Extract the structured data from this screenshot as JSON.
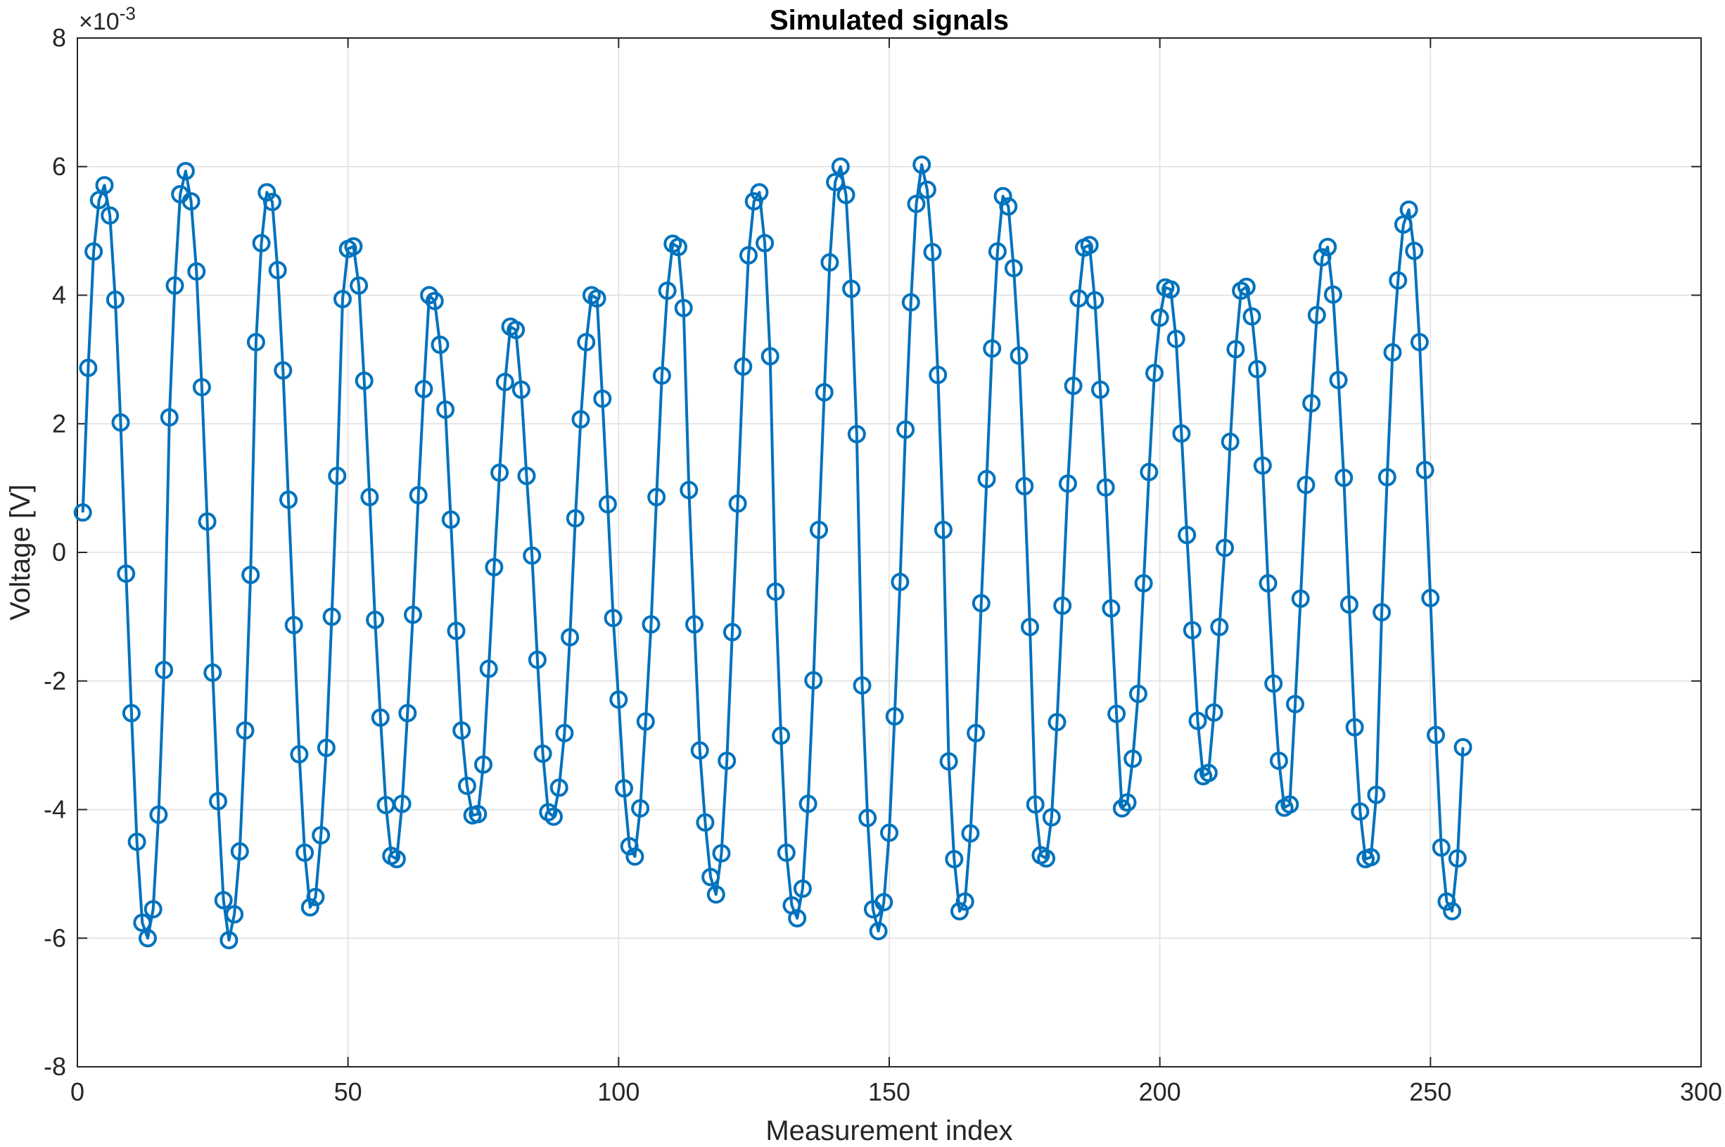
{
  "chart_data": {
    "type": "line",
    "title": "Simulated signals",
    "xlabel": "Measurement index",
    "ylabel": "Voltage [V]",
    "y_exponent_label": "×10",
    "y_exponent": "-3",
    "xlim": [
      0,
      300
    ],
    "ylim": [
      -8,
      8
    ],
    "x_ticks": [
      0,
      50,
      100,
      150,
      200,
      250,
      300
    ],
    "y_ticks": [
      -8,
      -6,
      -4,
      -2,
      0,
      2,
      4,
      6,
      8
    ],
    "grid": true,
    "marker": "circle",
    "series_color": "#0072BD",
    "series": [
      {
        "x": [
          1,
          2,
          3,
          4,
          5,
          6,
          7,
          8,
          9,
          10,
          11,
          12,
          13,
          14,
          15,
          16,
          17,
          18,
          19,
          20,
          21,
          22,
          23,
          24,
          25,
          26,
          27,
          28,
          29,
          30,
          31,
          32,
          33,
          34,
          35,
          36,
          37,
          38,
          39,
          40,
          41,
          42,
          43,
          44,
          45,
          46,
          47,
          48,
          49,
          50,
          51,
          52,
          53,
          54,
          55,
          56,
          57,
          58,
          59,
          60,
          61,
          62,
          63,
          64,
          65,
          66,
          67,
          68,
          69,
          70,
          71,
          72,
          73,
          74,
          75,
          76,
          77,
          78,
          79,
          80,
          81,
          82,
          83,
          84,
          85,
          86,
          87,
          88,
          89,
          90,
          91,
          92,
          93,
          94,
          95,
          96,
          97,
          98,
          99,
          100,
          101,
          102,
          103,
          104,
          105,
          106,
          107,
          108,
          109,
          110,
          111,
          112,
          113,
          114,
          115,
          116,
          117,
          118,
          119,
          120,
          121,
          122,
          123,
          124,
          125,
          126,
          127,
          128,
          129,
          130,
          131,
          132,
          133,
          134,
          135,
          136,
          137,
          138,
          139,
          140,
          141,
          142,
          143,
          144,
          145,
          146,
          147,
          148,
          149,
          150,
          151,
          152,
          153,
          154,
          155,
          156,
          157,
          158,
          159,
          160,
          161,
          162,
          163,
          164,
          165,
          166,
          167,
          168,
          169,
          170,
          171,
          172,
          173,
          174,
          175,
          176,
          177,
          178,
          179,
          180,
          181,
          182,
          183,
          184,
          185,
          186,
          187,
          188,
          189,
          190,
          191,
          192,
          193,
          194,
          195,
          196,
          197,
          198,
          199,
          200,
          201,
          202,
          203,
          204,
          205,
          206,
          207,
          208,
          209,
          210,
          211,
          212,
          213,
          214,
          215,
          216,
          217,
          218,
          219,
          220,
          221,
          222,
          223,
          224,
          225,
          226,
          227,
          228,
          229,
          230,
          231,
          232,
          233,
          234,
          235,
          236,
          237,
          238,
          239,
          240,
          241,
          242,
          243,
          244,
          245,
          246,
          247,
          248,
          249,
          250,
          251,
          252,
          253,
          254,
          255,
          256
        ],
        "y": [
          0.62,
          2.87,
          4.68,
          5.48,
          5.71,
          5.24,
          3.93,
          2.02,
          -0.33,
          -2.5,
          -4.5,
          -5.76,
          -6.0,
          -5.55,
          -4.08,
          -1.83,
          2.1,
          4.15,
          5.57,
          5.93,
          5.46,
          4.37,
          2.57,
          0.48,
          -1.87,
          -3.87,
          -5.41,
          -6.03,
          -5.63,
          -4.65,
          -2.77,
          -0.35,
          3.27,
          4.81,
          5.6,
          5.45,
          4.39,
          2.83,
          0.82,
          -1.13,
          -3.14,
          -4.67,
          -5.52,
          -5.36,
          -4.4,
          -3.04,
          -1.0,
          1.19,
          3.94,
          4.72,
          4.76,
          4.15,
          2.67,
          0.86,
          -1.05,
          -2.57,
          -3.93,
          -4.72,
          -4.77,
          -3.91,
          -2.5,
          -0.97,
          0.89,
          2.54,
          4.0,
          3.91,
          3.23,
          2.22,
          0.51,
          -1.22,
          -2.77,
          -3.63,
          -4.09,
          -4.07,
          -3.3,
          -1.81,
          -0.23,
          1.24,
          2.65,
          3.51,
          3.46,
          2.53,
          1.19,
          -0.05,
          -1.67,
          -3.13,
          -4.04,
          -4.11,
          -3.66,
          -2.81,
          -1.32,
          0.53,
          2.07,
          3.27,
          4.0,
          3.95,
          2.39,
          0.75,
          -1.02,
          -2.29,
          -3.67,
          -4.57,
          -4.73,
          -3.98,
          -2.63,
          -1.12,
          0.86,
          2.75,
          4.07,
          4.8,
          4.75,
          3.8,
          0.97,
          -1.12,
          -3.08,
          -4.2,
          -5.05,
          -5.32,
          -4.68,
          -3.24,
          -1.24,
          0.76,
          2.89,
          4.62,
          5.46,
          5.6,
          4.81,
          3.05,
          -0.61,
          -2.85,
          -4.67,
          -5.49,
          -5.69,
          -5.23,
          -3.91,
          -1.99,
          0.35,
          2.49,
          4.51,
          5.76,
          6.0,
          5.56,
          4.1,
          1.84,
          -2.07,
          -4.13,
          -5.55,
          -5.89,
          -5.44,
          -4.36,
          -2.55,
          -0.46,
          1.91,
          3.89,
          5.42,
          6.03,
          5.64,
          4.67,
          2.76,
          0.35,
          -3.25,
          -4.77,
          -5.58,
          -5.43,
          -4.37,
          -2.81,
          -0.79,
          1.14,
          3.17,
          4.68,
          5.54,
          5.38,
          4.42,
          3.06,
          1.03,
          -1.16,
          -3.92,
          -4.71,
          -4.76,
          -4.12,
          -2.64,
          -0.83,
          1.07,
          2.59,
          3.95,
          4.74,
          4.78,
          3.92,
          2.53,
          1.01,
          -0.87,
          -2.51,
          -3.98,
          -3.89,
          -3.21,
          -2.2,
          -0.48,
          1.25,
          2.79,
          3.65,
          4.12,
          4.09,
          3.32,
          1.85,
          0.27,
          -1.21,
          -2.62,
          -3.48,
          -3.43,
          -2.49,
          -1.16,
          0.07,
          1.72,
          3.16,
          4.07,
          4.13,
          3.67,
          2.85,
          1.35,
          -0.48,
          -2.04,
          -3.24,
          -3.97,
          -3.92,
          -2.36,
          -0.72,
          1.05,
          2.32,
          3.69,
          4.59,
          4.75,
          4.01,
          2.68,
          1.16,
          -0.81,
          -2.72,
          -4.03,
          -4.77,
          -4.74,
          -3.77,
          -0.93,
          1.17,
          3.11,
          4.23,
          5.1,
          5.33,
          4.69,
          3.27,
          1.28,
          -0.71,
          -2.84,
          -4.59,
          -5.43,
          -5.58,
          -4.76,
          -3.03
        ]
      }
    ]
  }
}
